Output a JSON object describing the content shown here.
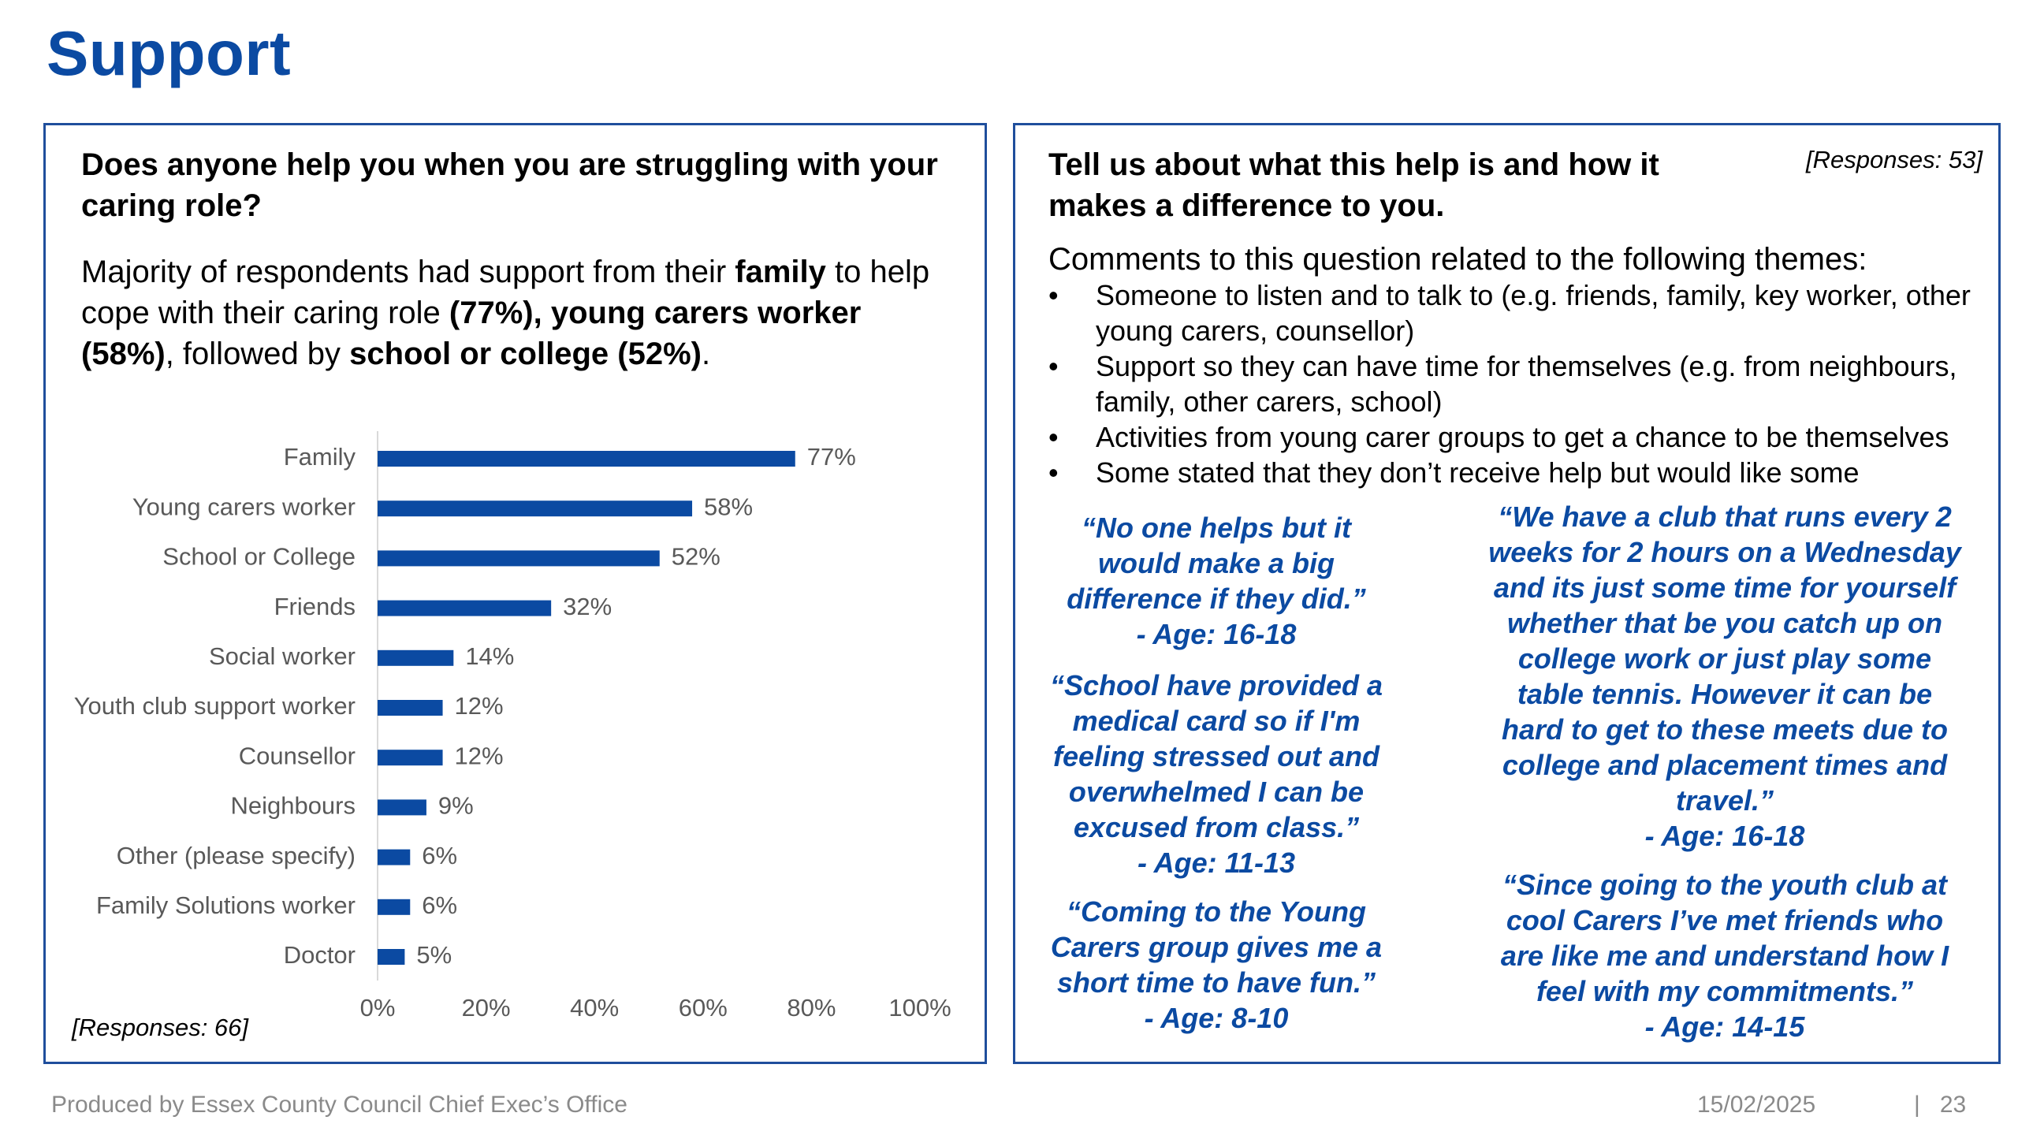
{
  "title": "Support",
  "left_panel": {
    "question": "Does anyone help you when you are struggling with your caring role?",
    "summary": {
      "part1": "Majority of respondents had support from their ",
      "family": "family",
      "part2": " to help cope with their caring role ",
      "bold1": "(77%), young carers worker (58%)",
      "part3": ", followed by ",
      "bold2": "school or college (52%)",
      "part4": "."
    },
    "responses": "[Responses: 66]"
  },
  "chart_data": {
    "type": "bar",
    "orientation": "horizontal",
    "categories": [
      "Family",
      "Young carers worker",
      "School or College",
      "Friends",
      "Social worker",
      "Youth club support worker",
      "Counsellor",
      "Neighbours",
      "Other (please specify)",
      "Family Solutions worker",
      "Doctor"
    ],
    "values": [
      77,
      58,
      52,
      32,
      14,
      12,
      12,
      9,
      6,
      6,
      5
    ],
    "value_labels": [
      "77%",
      "58%",
      "52%",
      "32%",
      "14%",
      "12%",
      "12%",
      "9%",
      "6%",
      "6%",
      "5%"
    ],
    "xlim": [
      0,
      100
    ],
    "x_ticks": [
      "0%",
      "20%",
      "40%",
      "60%",
      "80%",
      "100%"
    ],
    "color": "#0b4aa2",
    "grid": false
  },
  "right_panel": {
    "question": "Tell us about what this help is and how it makes a difference to you.",
    "responses": "[Responses: 53]",
    "themes_intro": "Comments to this question related to the following themes:",
    "themes": [
      "Someone to listen and to talk to (e.g. friends, family, key worker, other young carers, counsellor)",
      "Support so they can have time for themselves (e.g. from neighbours, family, other carers, school)",
      "Activities from young carer groups to get a chance to be themselves",
      "Some stated that they don’t receive help but would like some"
    ],
    "quotes": [
      {
        "text": "“No one helps but it would make a big difference if they did.”",
        "age": "- Age: 16-18"
      },
      {
        "text": "“School have provided a medical card so if I'm feeling stressed out and overwhelmed I can be excused from class.”",
        "age": "- Age: 11-13"
      },
      {
        "text": "“Coming to the Young Carers group gives me a short time to have fun.”",
        "age": "- Age: 8-10"
      },
      {
        "text": "“We have a club that runs every 2 weeks for 2 hours on a Wednesday and its just some time for yourself whether that be you catch up on college work or just play some table tennis. However it can be hard to get to these meets due to college and placement times and travel.”",
        "age": "- Age: 16-18"
      },
      {
        "text": "“Since going to the youth club at cool Carers I’ve met friends who are like me and understand how I feel with my commitments.”",
        "age": "- Age: 14-15"
      }
    ]
  },
  "footer": {
    "produced_by": "Produced by Essex County Council Chief Exec’s Office",
    "date": "15/02/2025",
    "separator": "|",
    "page_number": "23"
  },
  "colors": {
    "brand_blue": "#0b4aa2",
    "panel_border": "#1f4e9c",
    "footer_grey": "#8a8a8a"
  }
}
